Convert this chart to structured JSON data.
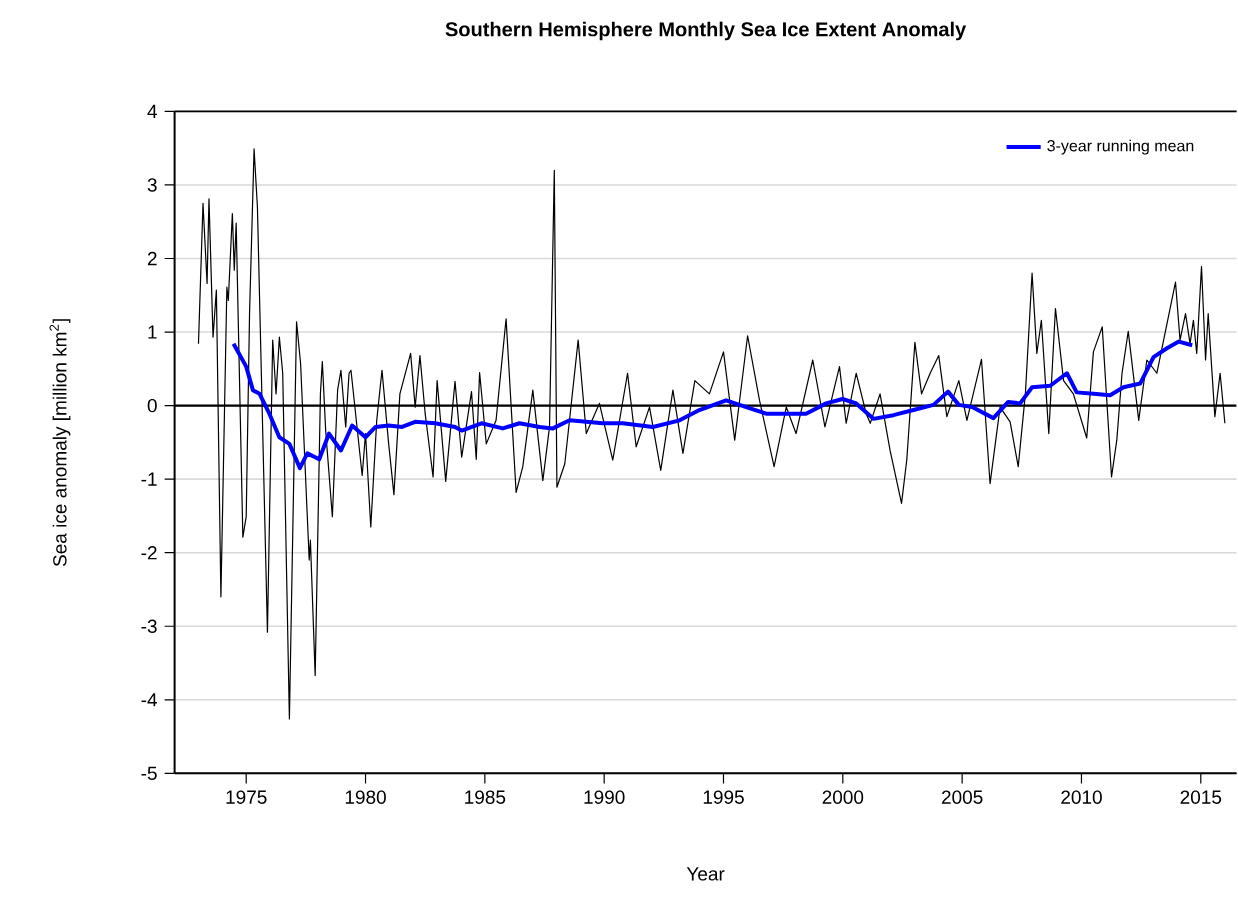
{
  "chart_data": {
    "type": "line",
    "title": "Southern Hemisphere Monthly Sea Ice Extent Anomaly",
    "xlabel": "Year",
    "ylabel": "Sea ice anomaly [million km$^{2}$]",
    "xlim": [
      1972,
      2016.5
    ],
    "xticks": [
      1975,
      1980,
      1985,
      1990,
      1995,
      2000,
      2005,
      2010,
      2015
    ],
    "ylim": [
      -5,
      4
    ],
    "yticks": [
      -5,
      -4,
      -3,
      -2,
      -1,
      0,
      1,
      2,
      3,
      4
    ],
    "grid": "y",
    "legend": "top right",
    "ref_lines": [
      {
        "axis": "y",
        "value": 0,
        "color": "#000000"
      }
    ],
    "series": [
      {
        "color": "#000000",
        "x": [
          1973.0,
          1973.19,
          1973.36,
          1973.44,
          1973.61,
          1973.75,
          1973.94,
          1974.19,
          1974.25,
          1974.42,
          1974.5,
          1974.58,
          1974.86,
          1975.0,
          1975.14,
          1975.33,
          1975.47,
          1975.89,
          1976.11,
          1976.25,
          1976.39,
          1976.53,
          1976.81,
          1977.11,
          1977.28,
          1977.64,
          1977.69,
          1977.89,
          1978.11,
          1978.19,
          1978.33,
          1978.61,
          1978.83,
          1978.97,
          1979.17,
          1979.31,
          1979.39,
          1979.86,
          1980.0,
          1980.22,
          1980.47,
          1980.69,
          1980.97,
          1981.19,
          1981.44,
          1981.89,
          1982.08,
          1982.28,
          1982.5,
          1982.83,
          1983.0,
          1983.36,
          1983.75,
          1984.03,
          1984.44,
          1984.64,
          1984.78,
          1985.06,
          1985.47,
          1985.89,
          1986.31,
          1986.59,
          1987.01,
          1987.43,
          1987.71,
          1987.91,
          1988.02,
          1988.35,
          1988.91,
          1989.25,
          1989.8,
          1990.36,
          1990.98,
          1991.34,
          1991.9,
          1992.37,
          1992.88,
          1993.3,
          1993.8,
          1994.41,
          1995.0,
          1995.47,
          1996.01,
          1996.51,
          1997.12,
          1997.63,
          1998.04,
          1998.74,
          1999.25,
          1999.86,
          2000.14,
          2000.56,
          2000.98,
          2001.15,
          2001.56,
          2001.98,
          2002.46,
          2002.68,
          2003.02,
          2003.3,
          2003.66,
          2004.02,
          2004.36,
          2004.86,
          2005.2,
          2005.81,
          2006.17,
          2006.59,
          2007.01,
          2007.35,
          2007.65,
          2007.93,
          2008.13,
          2008.32,
          2008.63,
          2008.91,
          2009.25,
          2009.66,
          2010.22,
          2010.5,
          2010.87,
          2011.26,
          2011.48,
          2011.7,
          2011.96,
          2012.4,
          2012.74,
          2013.16,
          2013.94,
          2014.13,
          2014.36,
          2014.55,
          2014.69,
          2014.83,
          2015.03,
          2015.2,
          2015.31,
          2015.59,
          2015.81,
          2016.01
        ],
        "values": [
          0.84,
          2.75,
          1.66,
          2.81,
          0.93,
          1.57,
          -2.6,
          1.61,
          1.43,
          2.61,
          1.84,
          2.48,
          -1.79,
          -1.51,
          1.25,
          3.49,
          2.7,
          -3.08,
          0.89,
          0.16,
          0.93,
          0.44,
          -4.26,
          1.14,
          0.57,
          -2.1,
          -1.83,
          -3.67,
          0.16,
          0.6,
          -0.34,
          -1.51,
          0.21,
          0.48,
          -0.29,
          0.44,
          0.48,
          -0.95,
          -0.38,
          -1.65,
          -0.2,
          0.48,
          -0.52,
          -1.21,
          0.16,
          0.71,
          -0.02,
          0.68,
          -0.11,
          -0.97,
          0.34,
          -1.03,
          0.33,
          -0.7,
          0.19,
          -0.73,
          0.45,
          -0.52,
          -0.2,
          1.18,
          -1.18,
          -0.83,
          0.21,
          -1.02,
          -0.29,
          3.2,
          -1.11,
          -0.79,
          0.89,
          -0.38,
          0.03,
          -0.74,
          0.44,
          -0.56,
          -0.02,
          -0.88,
          0.21,
          -0.65,
          0.34,
          0.16,
          0.73,
          -0.47,
          0.95,
          0.07,
          -0.83,
          -0.02,
          -0.38,
          0.62,
          -0.29,
          0.53,
          -0.24,
          0.44,
          -0.11,
          -0.24,
          0.16,
          -0.61,
          -1.33,
          -0.74,
          0.86,
          0.16,
          0.44,
          0.68,
          -0.15,
          0.34,
          -0.2,
          0.63,
          -1.06,
          -0.02,
          -0.22,
          -0.83,
          0.16,
          1.8,
          0.71,
          1.16,
          -0.38,
          1.32,
          0.34,
          0.16,
          -0.44,
          0.73,
          1.07,
          -0.97,
          -0.47,
          0.44,
          1.01,
          -0.2,
          0.62,
          0.44,
          1.68,
          0.89,
          1.25,
          0.84,
          1.16,
          0.71,
          1.89,
          0.62,
          1.25,
          -0.15,
          0.44,
          -0.24
        ]
      },
      {
        "name": "3-year running mean",
        "color": "#0000ff",
        "x": [
          1974.47,
          1975.0,
          1975.28,
          1975.56,
          1975.97,
          1976.39,
          1976.81,
          1977.25,
          1977.56,
          1978.06,
          1978.47,
          1978.97,
          1979.44,
          1980.0,
          1980.42,
          1980.97,
          1981.53,
          1982.08,
          1982.92,
          1983.75,
          1984.03,
          1984.86,
          1985.75,
          1986.45,
          1987.29,
          1987.85,
          1988.55,
          1989.25,
          1989.94,
          1990.78,
          1992.04,
          1993.16,
          1993.99,
          1995.11,
          1995.95,
          1996.79,
          1997.63,
          1998.46,
          1999.3,
          1999.99,
          2000.56,
          2001.28,
          2002.12,
          2002.96,
          2003.8,
          2004.41,
          2004.86,
          2005.42,
          2006.31,
          2006.93,
          2007.43,
          2007.93,
          2008.69,
          2009.39,
          2009.8,
          2010.5,
          2011.2,
          2011.76,
          2012.46,
          2013.02,
          2013.58,
          2014.08,
          2014.64
        ],
        "values": [
          0.84,
          0.53,
          0.21,
          0.16,
          -0.11,
          -0.43,
          -0.52,
          -0.85,
          -0.65,
          -0.73,
          -0.38,
          -0.61,
          -0.27,
          -0.43,
          -0.29,
          -0.27,
          -0.29,
          -0.22,
          -0.24,
          -0.29,
          -0.34,
          -0.24,
          -0.31,
          -0.24,
          -0.29,
          -0.31,
          -0.2,
          -0.22,
          -0.24,
          -0.24,
          -0.29,
          -0.2,
          -0.06,
          0.07,
          -0.02,
          -0.11,
          -0.11,
          -0.11,
          0.03,
          0.09,
          0.03,
          -0.18,
          -0.13,
          -0.06,
          0.01,
          0.19,
          0.01,
          -0.02,
          -0.17,
          0.05,
          0.03,
          0.25,
          0.27,
          0.44,
          0.18,
          0.16,
          0.14,
          0.25,
          0.3,
          0.66,
          0.78,
          0.87,
          0.82
        ]
      }
    ]
  }
}
